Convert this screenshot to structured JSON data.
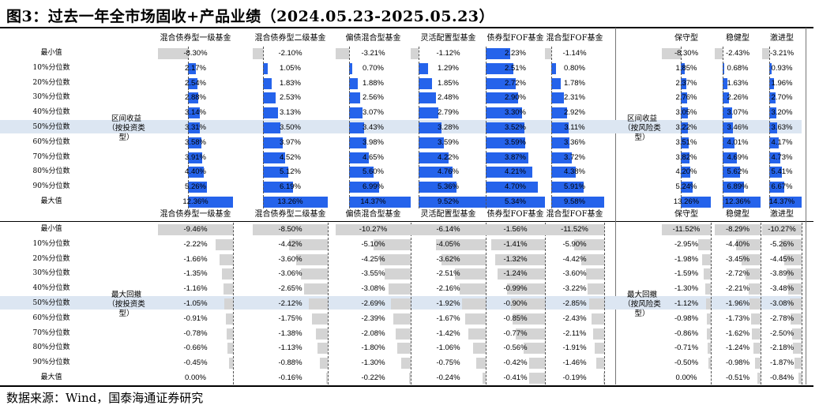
{
  "title": "图3：过去一年全市场固收+产品业绩（2024.05.23-2025.05.23）",
  "source": "数据来源：Wind，国泰海通证券研究",
  "left_headers": [
    "混合债券型一级基金",
    "混合债券型二级基金",
    "偏债混合型基金",
    "灵活配置型基金",
    "债券型FOF基金",
    "混合型FOF基金"
  ],
  "right_headers": [
    "保守型",
    "稳健型",
    "激进型"
  ],
  "row_labels": [
    "最小值",
    "10%分位数",
    "20%分位数",
    "30%分位数",
    "40%分位数",
    "50%分位数",
    "60%分位数",
    "70%分位数",
    "80%分位数",
    "90%分位数",
    "最大值"
  ],
  "top_group_left": [
    "区间收益",
    "（按投资类",
    "型）"
  ],
  "top_group_right": [
    "区间收益",
    "（按风险类",
    "型）"
  ],
  "bot_group_left": [
    "最大回撤",
    "（按投资类",
    "型）"
  ],
  "bot_group_right": [
    "最大回撤",
    "（按风险类",
    "型）"
  ],
  "top_left": [
    [
      "-8.30%",
      "2.17%",
      "2.54%",
      "2.88%",
      "3.14%",
      "3.31%",
      "3.58%",
      "3.91%",
      "4.40%",
      "5.26%",
      "12.36%"
    ],
    [
      "-2.10%",
      "1.05%",
      "1.83%",
      "2.53%",
      "3.13%",
      "3.50%",
      "3.97%",
      "4.52%",
      "5.12%",
      "6.19%",
      "13.26%"
    ],
    [
      "-3.21%",
      "0.70%",
      "1.88%",
      "2.56%",
      "3.07%",
      "3.43%",
      "3.98%",
      "4.65%",
      "5.60%",
      "6.99%",
      "14.37%"
    ],
    [
      "-1.12%",
      "1.29%",
      "1.85%",
      "2.48%",
      "2.79%",
      "3.28%",
      "3.59%",
      "4.22%",
      "4.76%",
      "5.36%",
      "9.52%"
    ],
    [
      "2.23%",
      "2.51%",
      "2.72%",
      "2.90%",
      "3.30%",
      "3.52%",
      "3.59%",
      "3.87%",
      "4.21%",
      "4.70%",
      "5.34%"
    ],
    [
      "-1.14%",
      "0.80%",
      "1.78%",
      "2.31%",
      "2.92%",
      "3.11%",
      "3.36%",
      "3.72%",
      "4.38%",
      "5.91%",
      "9.58%"
    ]
  ],
  "top_right": [
    [
      "-8.30%",
      "1.85%",
      "2.37%",
      "2.76%",
      "3.05%",
      "3.22%",
      "3.51%",
      "3.82%",
      "4.20%",
      "5.24%",
      "13.26%"
    ],
    [
      "-2.43%",
      "0.68%",
      "1.63%",
      "2.26%",
      "3.07%",
      "3.46%",
      "4.01%",
      "4.69%",
      "5.62%",
      "6.89%",
      "12.36%"
    ],
    [
      "-3.21%",
      "0.93%",
      "1.96%",
      "2.70%",
      "3.20%",
      "3.63%",
      "4.17%",
      "4.73%",
      "5.41%",
      "6.67%",
      "14.37%"
    ]
  ],
  "bot_left": [
    [
      "-9.46%",
      "-2.22%",
      "-1.66%",
      "-1.35%",
      "-1.16%",
      "-1.05%",
      "-0.91%",
      "-0.78%",
      "-0.66%",
      "-0.45%",
      "0.00%"
    ],
    [
      "-8.50%",
      "-4.42%",
      "-3.60%",
      "-3.06%",
      "-2.65%",
      "-2.12%",
      "-1.75%",
      "-1.38%",
      "-1.13%",
      "-0.88%",
      "-0.16%"
    ],
    [
      "-10.27%",
      "-5.10%",
      "-4.25%",
      "-3.55%",
      "-3.08%",
      "-2.69%",
      "-2.39%",
      "-2.08%",
      "-1.80%",
      "-1.30%",
      "-0.22%"
    ],
    [
      "-6.14%",
      "-4.05%",
      "-3.62%",
      "-2.51%",
      "-2.16%",
      "-1.92%",
      "-1.67%",
      "-1.42%",
      "-1.06%",
      "-0.75%",
      "-0.24%"
    ],
    [
      "-1.56%",
      "-1.41%",
      "-1.32%",
      "-1.24%",
      "-0.99%",
      "-0.90%",
      "-0.85%",
      "-0.77%",
      "-0.56%",
      "-0.42%",
      "-0.41%"
    ],
    [
      "-11.52%",
      "-5.90%",
      "-4.42%",
      "-3.60%",
      "-3.22%",
      "-2.85%",
      "-2.43%",
      "-2.11%",
      "-1.91%",
      "-1.46%",
      "-0.19%"
    ]
  ],
  "bot_right": [
    [
      "-11.52%",
      "-2.95%",
      "-1.98%",
      "-1.59%",
      "-1.30%",
      "-1.12%",
      "-0.98%",
      "-0.86%",
      "-0.71%",
      "-0.50%",
      "0.00%"
    ],
    [
      "-8.29%",
      "-4.40%",
      "-3.45%",
      "-2.72%",
      "-2.21%",
      "-1.96%",
      "-1.73%",
      "-1.62%",
      "-1.24%",
      "-0.98%",
      "-0.51%"
    ],
    [
      "-10.27%",
      "-5.26%",
      "-4.45%",
      "-3.89%",
      "-3.48%",
      "-3.08%",
      "-2.78%",
      "-2.50%",
      "-2.18%",
      "-1.87%",
      "-0.84%"
    ]
  ],
  "colors": {
    "positive_bar": "#2563eb",
    "negative_bar": "#d4d4d4",
    "highlight_row": "#dce6f2"
  }
}
